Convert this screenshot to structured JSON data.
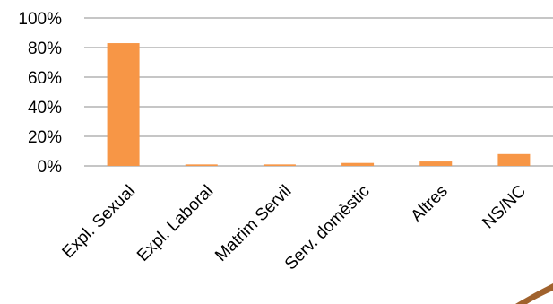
{
  "chart_data": {
    "type": "bar",
    "categories": [
      "Expl. Sexual",
      "Expl. Laboral",
      "Matrim Servil",
      "Serv. domèstic",
      "Altres",
      "NS/NC"
    ],
    "values": [
      83,
      1,
      1,
      2,
      3,
      8
    ],
    "ylim": [
      0,
      100
    ],
    "yticks": [
      0,
      20,
      40,
      60,
      80,
      100
    ],
    "ytick_labels": [
      "0%",
      "20%",
      "40%",
      "60%",
      "80%",
      "100%"
    ],
    "grid": true,
    "legend": "none",
    "bar_color": "#F79646",
    "grid_color": "#8C8C8C",
    "decoration_color": "#A0622D"
  }
}
